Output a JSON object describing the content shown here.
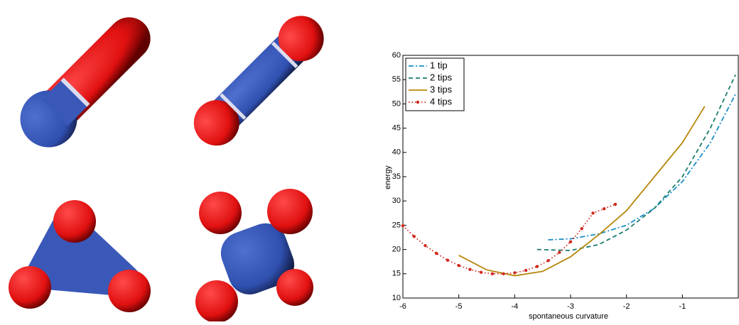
{
  "chart_data": {
    "type": "line",
    "xlabel": "spontaneous curvature",
    "ylabel": "energy",
    "xlim": [
      -6,
      0
    ],
    "ylim": [
      10,
      60
    ],
    "xticks": [
      -6,
      -5,
      -4,
      -3,
      -2,
      -1
    ],
    "yticks": [
      10,
      15,
      20,
      25,
      30,
      35,
      40,
      45,
      50,
      55,
      60
    ],
    "legend": "upper left",
    "series": [
      {
        "name": "1 tip",
        "color": "#1a8ec4",
        "linestyle": "dashdot",
        "x": [
          -3.4,
          -3,
          -2.5,
          -2,
          -1.5,
          -1,
          -0.5,
          -0.05
        ],
        "values": [
          22,
          22.2,
          23.2,
          25,
          28.5,
          34,
          42,
          52
        ]
      },
      {
        "name": "2 tips",
        "color": "#1b7d6c",
        "linestyle": "dashed",
        "x": [
          -3.6,
          -3,
          -2.5,
          -2,
          -1.5,
          -1,
          -0.5,
          -0.05
        ],
        "values": [
          20,
          19.8,
          21,
          24,
          28.5,
          35,
          45,
          56
        ]
      },
      {
        "name": "3 tips",
        "color": "#b5860a",
        "linestyle": "solid",
        "x": [
          -5,
          -4.5,
          -4,
          -3.5,
          -3,
          -2.5,
          -2,
          -1.5,
          -1,
          -0.6
        ],
        "values": [
          18.8,
          15.8,
          14.6,
          15.5,
          18.5,
          23,
          28,
          35,
          42,
          49.5
        ]
      },
      {
        "name": "4 tips",
        "color": "#d0281e",
        "linestyle": "dotted",
        "marker": "o",
        "x": [
          -6,
          -5.8,
          -5.6,
          -5.4,
          -5.2,
          -5,
          -4.8,
          -4.6,
          -4.4,
          -4.2,
          -4,
          -3.8,
          -3.6,
          -3.4,
          -3.2,
          -3,
          -2.8,
          -2.6,
          -2.4,
          -2.2
        ],
        "values": [
          24.9,
          22.7,
          20.8,
          19.2,
          17.8,
          16.7,
          15.9,
          15.3,
          15,
          15,
          15.2,
          15.7,
          16.5,
          17.7,
          19.4,
          21.6,
          24.3,
          27.5,
          28.4,
          29.3
        ]
      }
    ]
  }
}
